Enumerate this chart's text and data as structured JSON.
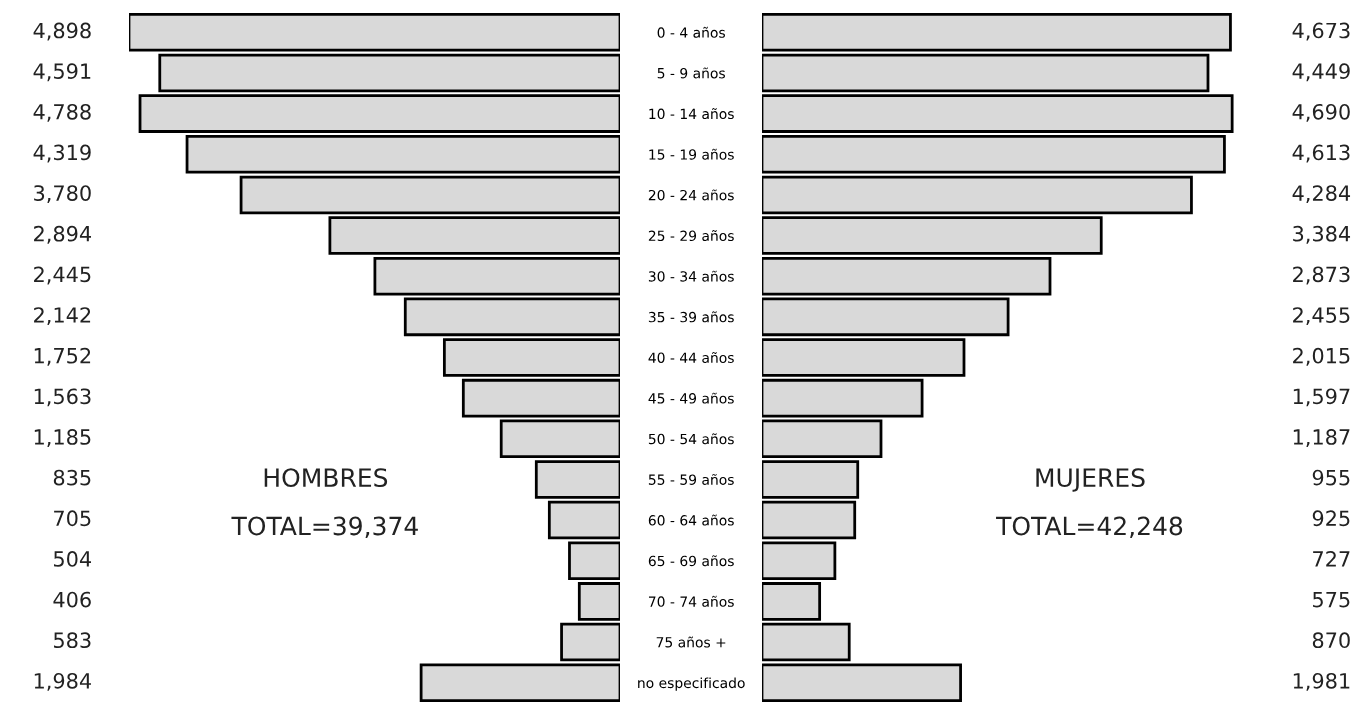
{
  "chart_data": [
    {
      "type": "bar",
      "orientation": "horizontal",
      "categories": [
        null,
        null,
        null,
        null,
        null,
        null,
        null,
        null,
        null,
        null,
        null,
        null,
        null,
        null,
        null,
        null,
        null
      ],
      "values": [
        4898,
        4591,
        4788,
        4319,
        3780,
        2894,
        2445,
        2142,
        1752,
        1563,
        1185,
        835,
        705,
        504,
        406,
        583,
        1984
      ],
      "value_labels": [
        "4,898",
        "4,591",
        "4,788",
        "4,319",
        "3,780",
        "2,894",
        "2,445",
        "2,142",
        "1,752",
        "1,563",
        "1,185",
        "835",
        "705",
        "504",
        "406",
        "583",
        "1,984"
      ],
      "color": "#d9d9d9",
      "tick_labels": false,
      "annotations": [
        "HOMBRES",
        "TOTAL=39,374"
      ]
    },
    {
      "type": "bar",
      "orientation": "horizontal",
      "categories": [
        "0 - 4 años",
        "5 - 9 años",
        "10 - 14 años",
        "15 - 19 años",
        "20 - 24 años",
        "25 - 29 años",
        "30 - 34 años",
        "35 - 39 años",
        "40 - 44 años",
        "45 - 49 años",
        "50 - 54 años",
        "55 - 59 años",
        "60 - 64 años",
        "65 - 69 años",
        "70 - 74 años",
        "75 años +",
        "no especificado"
      ],
      "values": [
        4673,
        4449,
        4690,
        4613,
        4284,
        3384,
        2873,
        2455,
        2015,
        1597,
        1187,
        955,
        925,
        727,
        575,
        870,
        1981
      ],
      "value_labels": [
        "4,673",
        "4,449",
        "4,690",
        "4,613",
        "4,284",
        "3,384",
        "2,873",
        "2,455",
        "2,015",
        "1,597",
        "1,187",
        "955",
        "925",
        "727",
        "575",
        "870",
        "1,981"
      ],
      "color": "#d9d9d9",
      "tick_labels": "y",
      "annotations": [
        "MUJERES",
        "TOTAL=42,248"
      ]
    }
  ]
}
